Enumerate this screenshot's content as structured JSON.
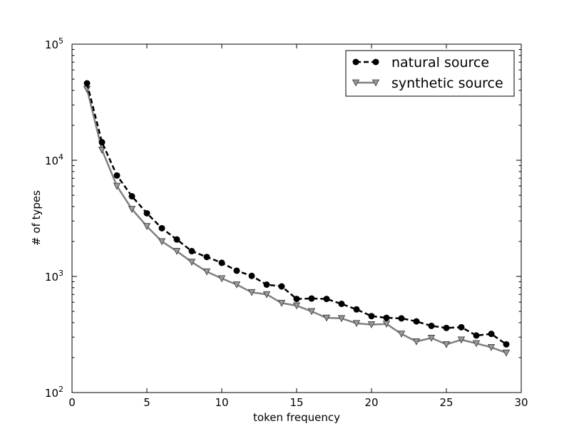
{
  "chart_data": {
    "type": "line",
    "title": "",
    "xlabel": "token frequency",
    "ylabel": "# of types",
    "xlim": [
      0,
      30
    ],
    "ylim": [
      100,
      100000
    ],
    "yscale": "log",
    "grid": false,
    "legend_position": "top-right",
    "x_ticks": [
      "0",
      "5",
      "10",
      "15",
      "20",
      "25",
      "30"
    ],
    "y_ticks": [
      {
        "base": "10",
        "exp": "2"
      },
      {
        "base": "10",
        "exp": "3"
      },
      {
        "base": "10",
        "exp": "4"
      },
      {
        "base": "10",
        "exp": "5"
      }
    ],
    "x": [
      1,
      2,
      3,
      4,
      5,
      6,
      7,
      8,
      9,
      10,
      11,
      12,
      13,
      14,
      15,
      16,
      17,
      18,
      19,
      20,
      21,
      22,
      23,
      24,
      25,
      26,
      27,
      28,
      29
    ],
    "series": [
      {
        "name": "natural source",
        "color": "#000000",
        "marker": "circle",
        "linestyle": "dashed",
        "values": [
          46000,
          14300,
          7400,
          4900,
          3500,
          2600,
          2080,
          1650,
          1470,
          1310,
          1120,
          1010,
          850,
          820,
          640,
          645,
          640,
          580,
          520,
          455,
          440,
          435,
          410,
          375,
          360,
          365,
          310,
          320,
          260
        ]
      },
      {
        "name": "synthetic source",
        "color": "#808080",
        "marker": "triangle-down",
        "linestyle": "solid",
        "values": [
          41000,
          12300,
          6000,
          3800,
          2700,
          2000,
          1650,
          1330,
          1100,
          960,
          850,
          730,
          700,
          590,
          560,
          500,
          440,
          435,
          395,
          385,
          390,
          320,
          275,
          295,
          260,
          285,
          265,
          245,
          220
        ]
      }
    ]
  }
}
